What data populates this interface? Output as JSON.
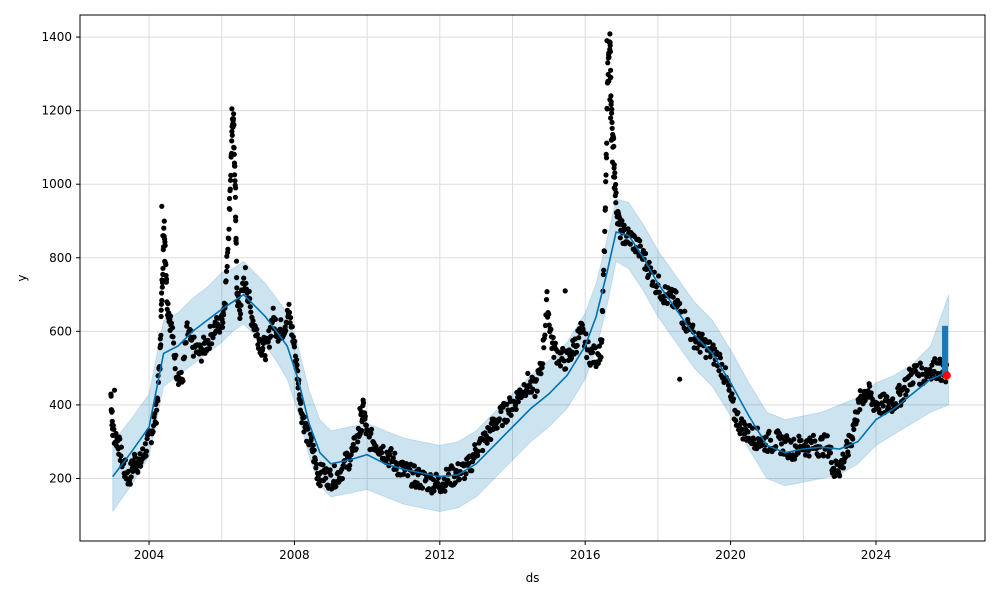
{
  "chart_data": {
    "type": "line",
    "title": "",
    "xlabel": "ds",
    "ylabel": "y",
    "xlim": [
      2002.1,
      2027.0
    ],
    "ylim": [
      30,
      1460
    ],
    "grid": true,
    "x_ticks": [
      2004,
      2006,
      2008,
      2010,
      2012,
      2014,
      2016,
      2018,
      2020,
      2022,
      2024
    ],
    "x_tick_labels": [
      "2004",
      "2008",
      "2012",
      "2016",
      "2020",
      "2024"
    ],
    "x_tick_label_values": [
      2004,
      2008,
      2012,
      2016,
      2020,
      2024
    ],
    "y_ticks": [
      200,
      400,
      600,
      800,
      1000,
      1200,
      1400
    ],
    "y_tick_labels": [
      "200",
      "400",
      "600",
      "800",
      "1000",
      "1200",
      "1400"
    ],
    "colors": {
      "observed": "#000000",
      "forecast_line": "#0072B2",
      "uncertainty_band": "#0072B2",
      "future_actuals": "#1f77b4",
      "last_point": "#ff0000",
      "grid": "#dddddd"
    },
    "forecast": {
      "x": [
        2003.0,
        2003.5,
        2004.0,
        2004.4,
        2004.8,
        2005.2,
        2005.6,
        2006.0,
        2006.3,
        2006.6,
        2006.9,
        2007.2,
        2007.5,
        2007.8,
        2008.1,
        2008.4,
        2008.7,
        2009.0,
        2009.5,
        2010.0,
        2010.5,
        2011.0,
        2011.5,
        2012.0,
        2012.5,
        2013.0,
        2013.5,
        2014.0,
        2014.5,
        2015.0,
        2015.5,
        2016.0,
        2016.3,
        2016.6,
        2016.85,
        2017.2,
        2017.6,
        2018.0,
        2018.5,
        2019.0,
        2019.5,
        2020.0,
        2020.5,
        2021.0,
        2021.5,
        2022.0,
        2022.5,
        2023.0,
        2023.5,
        2024.0,
        2024.5,
        2025.0,
        2025.5,
        2026.0
      ],
      "yhat": [
        205,
        270,
        340,
        540,
        560,
        600,
        630,
        660,
        680,
        700,
        670,
        640,
        600,
        560,
        470,
        350,
        270,
        240,
        250,
        265,
        240,
        225,
        215,
        205,
        210,
        240,
        290,
        340,
        390,
        430,
        480,
        560,
        640,
        760,
        870,
        860,
        800,
        730,
        660,
        590,
        540,
        460,
        370,
        290,
        270,
        280,
        285,
        280,
        300,
        360,
        390,
        430,
        470,
        490
      ],
      "yhat_lower": [
        110,
        180,
        260,
        450,
        480,
        510,
        540,
        570,
        600,
        620,
        590,
        560,
        520,
        470,
        380,
        260,
        180,
        150,
        160,
        170,
        150,
        130,
        120,
        110,
        120,
        150,
        200,
        250,
        300,
        340,
        390,
        470,
        550,
        670,
        790,
        770,
        710,
        640,
        570,
        500,
        450,
        370,
        280,
        200,
        180,
        190,
        200,
        210,
        240,
        290,
        320,
        350,
        380,
        400
      ],
      "yhat_upper": [
        300,
        360,
        430,
        630,
        650,
        690,
        720,
        760,
        770,
        790,
        760,
        730,
        690,
        650,
        560,
        440,
        360,
        330,
        340,
        350,
        330,
        310,
        300,
        290,
        300,
        330,
        380,
        430,
        480,
        520,
        570,
        650,
        730,
        850,
        960,
        950,
        890,
        820,
        750,
        680,
        630,
        550,
        460,
        380,
        360,
        370,
        380,
        400,
        420,
        460,
        480,
        510,
        560,
        700
      ]
    },
    "observed_trace": {
      "x": [
        2002.95,
        2003.0,
        2003.15,
        2003.3,
        2003.45,
        2003.6,
        2003.75,
        2003.9,
        2004.05,
        2004.2,
        2004.3,
        2004.35,
        2004.42,
        2004.5,
        2004.6,
        2004.75,
        2004.9,
        2005.05,
        2005.2,
        2005.4,
        2005.6,
        2005.8,
        2006.0,
        2006.1,
        2006.2,
        2006.27,
        2006.32,
        2006.37,
        2006.42,
        2006.5,
        2006.65,
        2006.8,
        2006.95,
        2007.1,
        2007.25,
        2007.4,
        2007.55,
        2007.7,
        2007.85,
        2008.0,
        2008.1,
        2008.2,
        2008.35,
        2008.5,
        2008.65,
        2008.8,
        2009.0,
        2009.2,
        2009.4,
        2009.6,
        2009.8,
        2009.9,
        2010.0,
        2010.2,
        2010.4,
        2010.6,
        2010.8,
        2011.0,
        2011.2,
        2011.4,
        2011.6,
        2011.8,
        2012.0,
        2012.2,
        2012.4,
        2012.6,
        2012.8,
        2013.0,
        2013.2,
        2013.4,
        2013.6,
        2013.8,
        2014.0,
        2014.2,
        2014.4,
        2014.6,
        2014.8,
        2014.95,
        2015.1,
        2015.3,
        2015.5,
        2015.7,
        2015.9,
        2016.1,
        2016.3,
        2016.45,
        2016.55,
        2016.62,
        2016.68,
        2016.72,
        2016.78,
        2016.85,
        2016.95,
        2017.1,
        2017.3,
        2017.5,
        2017.7,
        2017.9,
        2018.1,
        2018.3,
        2018.5,
        2018.7,
        2018.9,
        2019.1,
        2019.3,
        2019.5,
        2019.7,
        2019.9,
        2020.1,
        2020.3,
        2020.5,
        2020.7,
        2020.9,
        2021.1,
        2021.3,
        2021.5,
        2021.7,
        2021.9,
        2022.1,
        2022.3,
        2022.5,
        2022.7,
        2022.85,
        2023.0,
        2023.15,
        2023.3,
        2023.45,
        2023.6,
        2023.75,
        2023.9,
        2024.1,
        2024.3,
        2024.5,
        2024.7,
        2024.9,
        2025.1,
        2025.3,
        2025.5,
        2025.7,
        2025.85,
        2025.95
      ],
      "y": [
        430,
        330,
        300,
        230,
        200,
        250,
        240,
        280,
        320,
        380,
        520,
        700,
        900,
        680,
        620,
        500,
        460,
        600,
        560,
        540,
        570,
        610,
        620,
        700,
        900,
        1100,
        1200,
        980,
        700,
        660,
        750,
        650,
        600,
        560,
        550,
        640,
        600,
        610,
        650,
        560,
        470,
        380,
        320,
        280,
        210,
        210,
        200,
        210,
        240,
        270,
        330,
        390,
        310,
        300,
        280,
        260,
        240,
        220,
        210,
        200,
        195,
        190,
        185,
        200,
        210,
        220,
        230,
        280,
        300,
        330,
        360,
        380,
        400,
        430,
        460,
        440,
        500,
        680,
        560,
        530,
        520,
        560,
        600,
        540,
        530,
        560,
        900,
        1300,
        1390,
        1200,
        1100,
        950,
        880,
        860,
        850,
        820,
        780,
        740,
        710,
        690,
        680,
        640,
        600,
        570,
        560,
        540,
        520,
        460,
        380,
        340,
        320,
        310,
        300,
        300,
        300,
        290,
        280,
        290,
        290,
        290,
        290,
        290,
        220,
        230,
        260,
        300,
        370,
        420,
        440,
        410,
        400,
        400,
        410,
        430,
        470,
        490,
        480,
        500,
        500,
        490,
        480
      ],
      "extremes": {
        "x": [
          2004.35,
          2004.38,
          2004.4,
          2004.43,
          2006.28,
          2006.3,
          2006.33,
          2006.35,
          2006.38,
          2016.6,
          2016.62,
          2016.65,
          2016.68,
          2016.7,
          2016.72,
          2016.75,
          2016.78,
          2016.8,
          2003.05,
          2009.8,
          2018.6,
          2015.45
        ],
        "y": [
          940,
          860,
          830,
          790,
          1205,
          1160,
          1100,
          1050,
          990,
          1390,
          1330,
          1280,
          1230,
          1180,
          1120,
          1060,
          1020,
          990,
          440,
          390,
          470,
          710
        ]
      }
    },
    "future_actuals": {
      "x": 2025.9,
      "y_min": 480,
      "y_max": 615
    },
    "last_point": {
      "x": 2025.95,
      "y": 480
    }
  }
}
